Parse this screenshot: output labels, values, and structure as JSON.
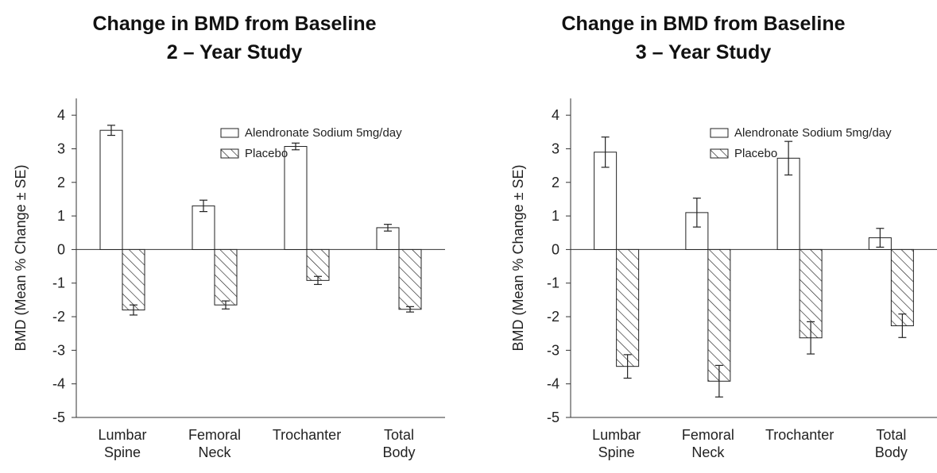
{
  "chart_data": [
    {
      "type": "bar",
      "title": [
        "Change in BMD from Baseline",
        "2 – Year Study"
      ],
      "ylabel": "BMD (Mean % Change ± SE)",
      "ylim": [
        -5,
        4.5
      ],
      "yticks": [
        "4",
        "3",
        "2",
        "1",
        "0",
        "-1",
        "-2",
        "-3",
        "-4",
        "-5"
      ],
      "categories": [
        [
          "Lumbar",
          "Spine"
        ],
        [
          "Femoral",
          "Neck"
        ],
        [
          "Trochanter"
        ],
        [
          "Total",
          "Body"
        ]
      ],
      "series": [
        {
          "name": "Alendronate Sodium 5mg/day",
          "pattern": "open",
          "values": [
            3.55,
            1.3,
            3.07,
            0.65
          ],
          "errors": [
            0.15,
            0.17,
            0.1,
            0.1
          ]
        },
        {
          "name": "Placebo",
          "pattern": "hatched",
          "values": [
            -1.8,
            -1.65,
            -0.92,
            -1.78
          ],
          "errors": [
            0.15,
            0.12,
            0.12,
            0.08
          ]
        }
      ],
      "legend": "top-right",
      "grid": false
    },
    {
      "type": "bar",
      "title": [
        "Change in BMD from Baseline",
        "3 – Year Study"
      ],
      "ylabel": "BMD (Mean % Change ± SE)",
      "ylim": [
        -5,
        4.5
      ],
      "yticks": [
        "4",
        "3",
        "2",
        "1",
        "0",
        "-1",
        "-2",
        "-3",
        "-4",
        "-5"
      ],
      "categories": [
        [
          "Lumbar",
          "Spine"
        ],
        [
          "Femoral",
          "Neck"
        ],
        [
          "Trochanter"
        ],
        [
          "Total",
          "Body"
        ]
      ],
      "series": [
        {
          "name": "Alendronate Sodium 5mg/day",
          "pattern": "open",
          "values": [
            2.9,
            1.1,
            2.72,
            0.35
          ],
          "errors": [
            0.45,
            0.43,
            0.5,
            0.28
          ]
        },
        {
          "name": "Placebo",
          "pattern": "hatched",
          "values": [
            -3.48,
            -3.92,
            -2.63,
            -2.27
          ],
          "errors": [
            0.35,
            0.47,
            0.48,
            0.35
          ]
        }
      ],
      "legend": "top-right",
      "grid": false
    }
  ]
}
